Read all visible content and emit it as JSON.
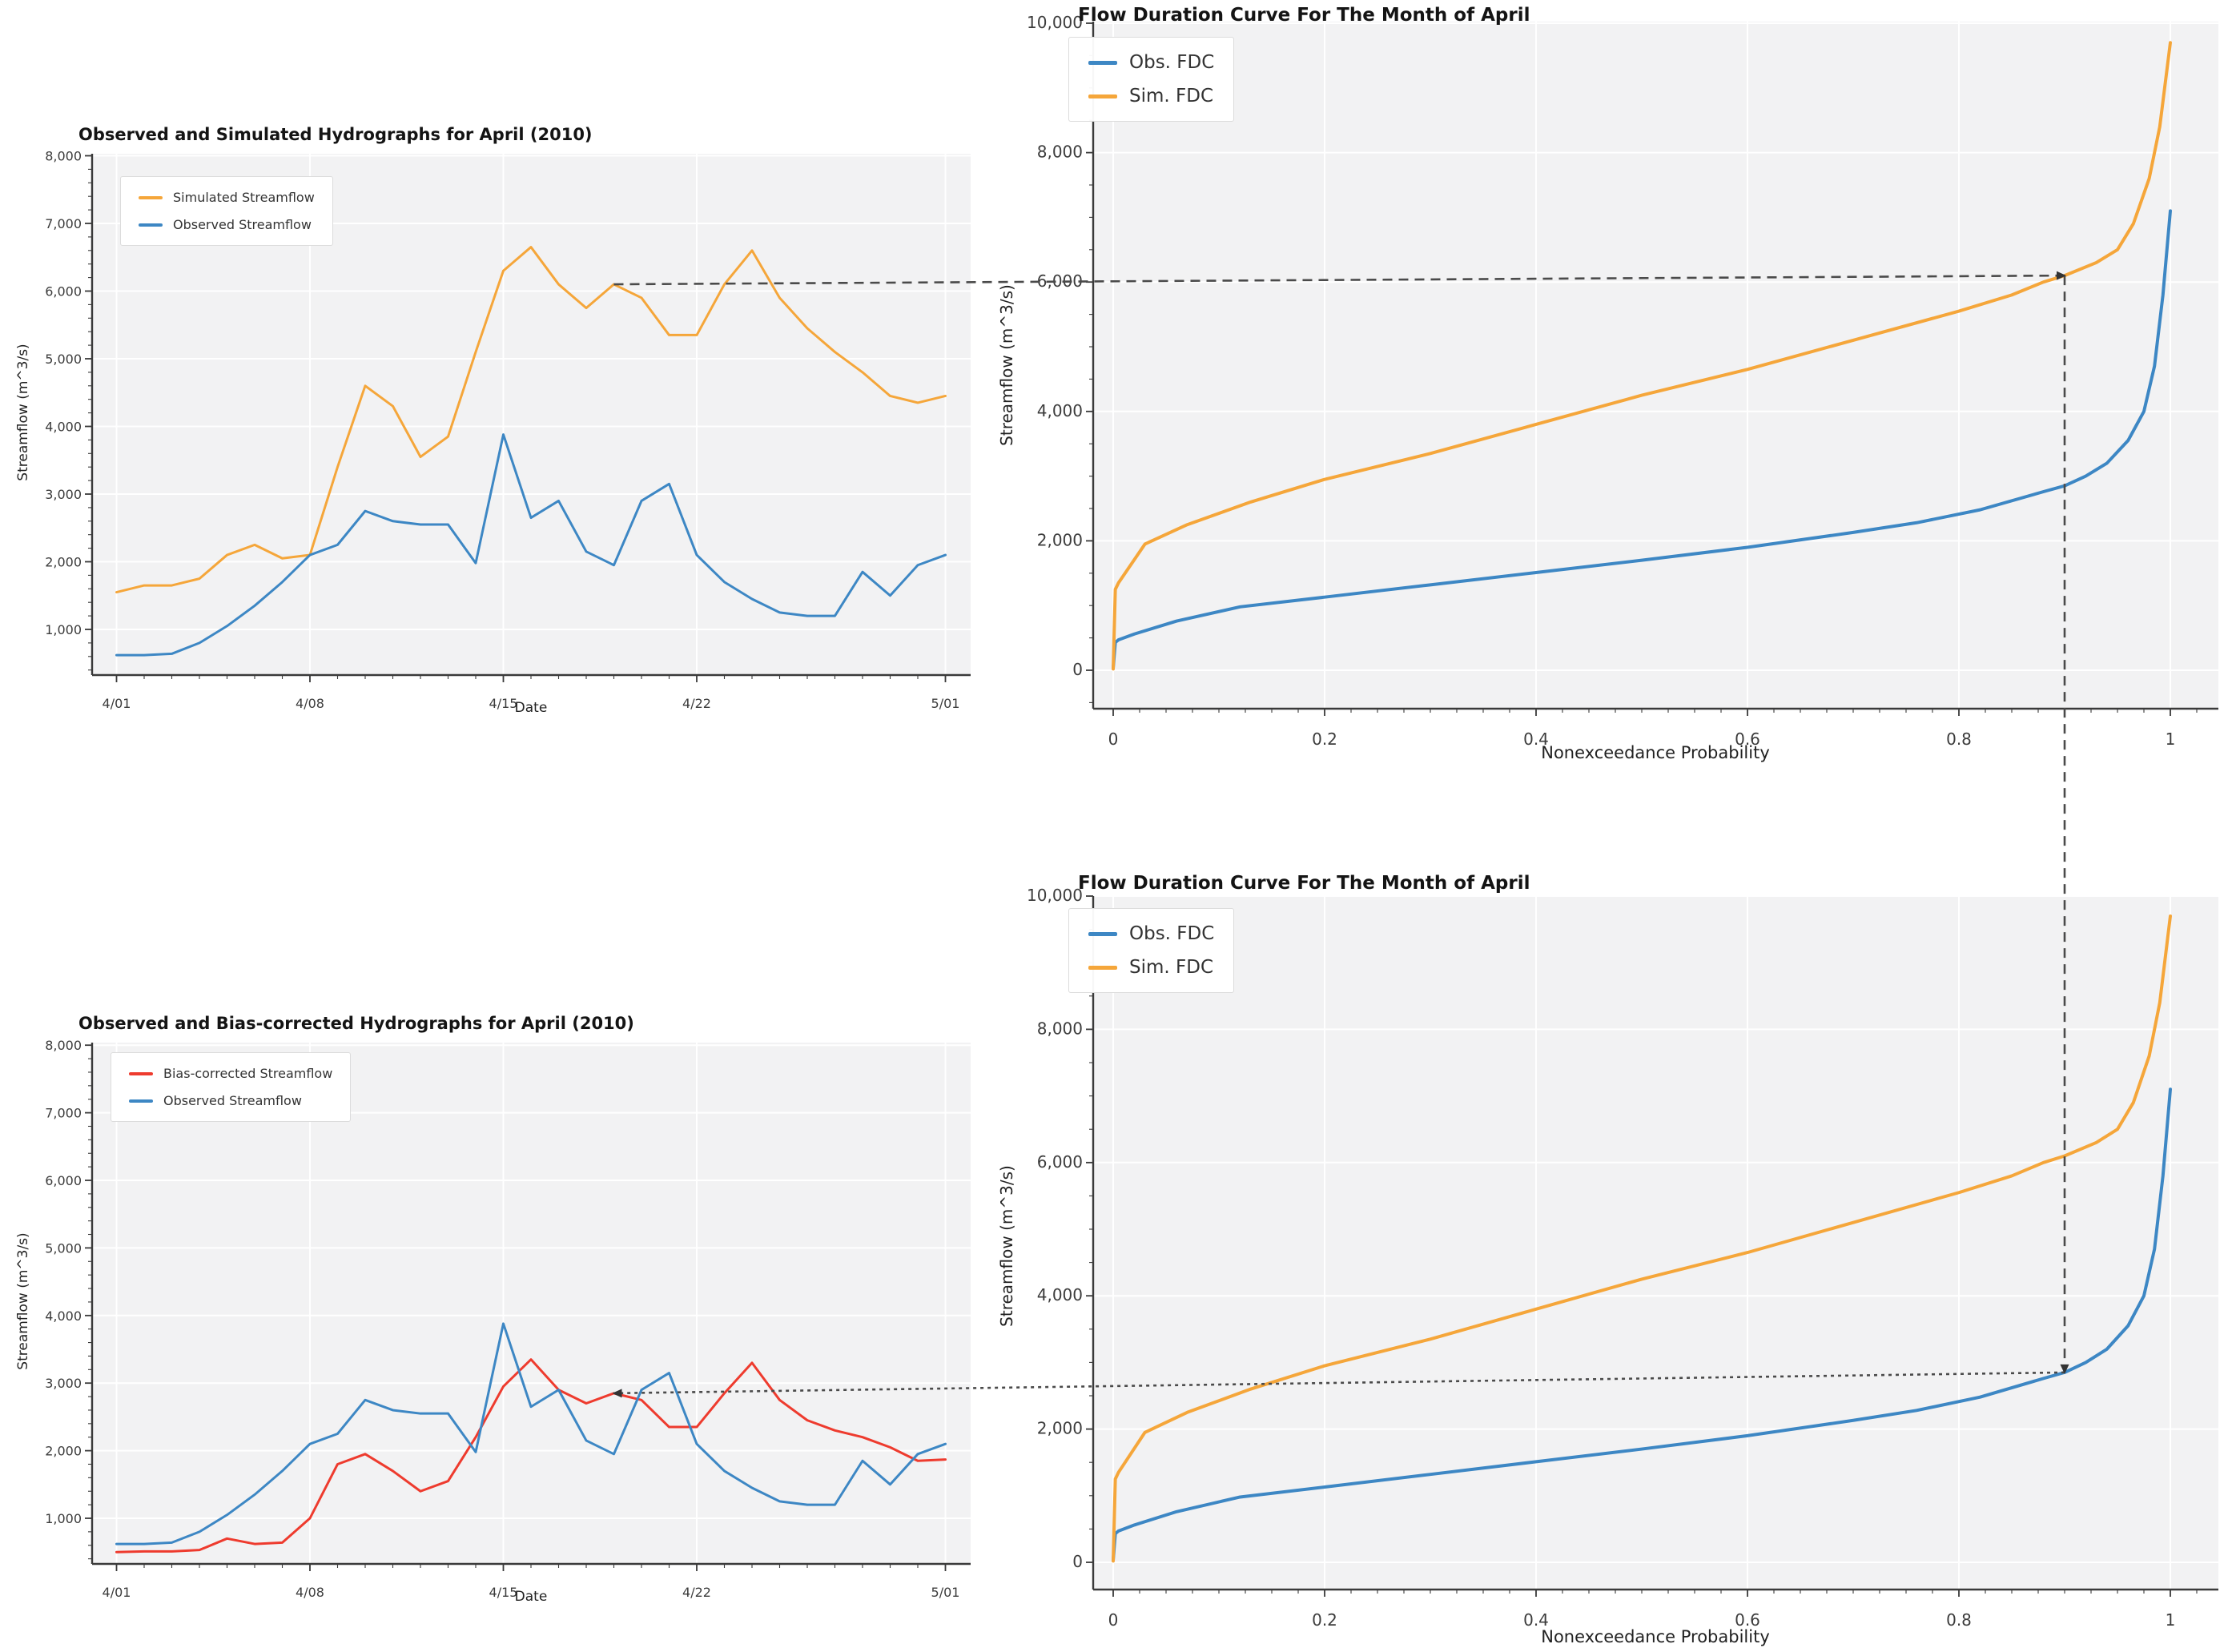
{
  "figure": {
    "plot_background": "#f2f2f3",
    "grid_color": "#ffffff",
    "spine_color": "#3a3a3a",
    "tick_label_color": "#3c3c3c",
    "annotation_color": "#4a4a4a"
  },
  "chart_data": [
    {
      "id": "hydrograph-simulated",
      "type": "line",
      "title": "Observed and Simulated Hydrographs for April (2010)",
      "xlabel": "Date",
      "ylabel": "Streamflow (m^3/s)",
      "x_tick_labels": [
        "4/01",
        "4/08",
        "4/15",
        "4/22",
        "5/01"
      ],
      "x_tick_days": [
        1,
        8,
        15,
        22,
        31
      ],
      "x_start_day": 1,
      "x_step_days": 1,
      "ylim": [
        325,
        8075
      ],
      "yticks": [
        1000,
        2000,
        3000,
        4000,
        5000,
        6000,
        7000,
        8000
      ],
      "ytick_labels": [
        "1,000",
        "2,000",
        "3,000",
        "4,000",
        "5,000",
        "6,000",
        "7,000",
        "8,000"
      ],
      "grid": true,
      "legend_position": "upper left",
      "series": [
        {
          "name": "Simulated Streamflow",
          "color": "#f5a63a",
          "values": [
            1550,
            1650,
            1650,
            1750,
            2100,
            2250,
            2050,
            2100,
            3400,
            4600,
            4300,
            3550,
            3850,
            5100,
            6300,
            6650,
            6100,
            5750,
            6100,
            5900,
            5350,
            5350,
            6100,
            6600,
            5900,
            5450,
            5100,
            4800,
            4450,
            4350,
            4450
          ]
        },
        {
          "name": "Observed Streamflow",
          "color": "#3d87c4",
          "values": [
            620,
            620,
            640,
            800,
            1050,
            1350,
            1700,
            2100,
            2250,
            2750,
            2600,
            2550,
            2550,
            1980,
            3880,
            2650,
            2900,
            2150,
            1950,
            2900,
            3150,
            2100,
            1700,
            1450,
            1250,
            1200,
            1200,
            1850,
            1500,
            1950,
            2100
          ]
        }
      ]
    },
    {
      "id": "fdc-top",
      "type": "line",
      "title": "Flow Duration Curve For The Month of April",
      "xlabel": "Nonexceedance Probability",
      "ylabel": "Streamflow (m^3/s)",
      "xticks": [
        0,
        0.2,
        0.4,
        0.6,
        0.8,
        1
      ],
      "xtick_labels": [
        "0",
        "0.2",
        "0.4",
        "0.6",
        "0.8",
        "1"
      ],
      "yticks": [
        0,
        2000,
        4000,
        6000,
        8000,
        10000
      ],
      "ytick_labels": [
        "0",
        "2,000",
        "4,000",
        "6,000",
        "8,000",
        "10,000"
      ],
      "ylim": [
        -590,
        10020
      ],
      "grid": true,
      "legend_position": "upper left",
      "series": [
        {
          "name": "Obs. FDC",
          "color": "#3d87c4",
          "x": [
            0,
            0.002,
            0.005,
            0.02,
            0.06,
            0.12,
            0.2,
            0.3,
            0.4,
            0.5,
            0.6,
            0.7,
            0.76,
            0.82,
            0.88,
            0.9,
            0.92,
            0.94,
            0.96,
            0.975,
            0.985,
            0.993,
            1
          ],
          "y": [
            30,
            430,
            470,
            560,
            760,
            980,
            1130,
            1320,
            1510,
            1700,
            1900,
            2130,
            2280,
            2480,
            2760,
            2850,
            3000,
            3200,
            3550,
            4000,
            4700,
            5800,
            7100
          ]
        },
        {
          "name": "Sim. FDC",
          "color": "#f5a63a",
          "x": [
            0,
            0.002,
            0.005,
            0.03,
            0.07,
            0.13,
            0.2,
            0.3,
            0.4,
            0.5,
            0.6,
            0.7,
            0.8,
            0.85,
            0.88,
            0.9,
            0.93,
            0.95,
            0.965,
            0.98,
            0.99,
            1
          ],
          "y": [
            20,
            1250,
            1350,
            1950,
            2250,
            2600,
            2950,
            3350,
            3800,
            4250,
            4650,
            5100,
            5550,
            5800,
            6000,
            6100,
            6300,
            6500,
            6900,
            7600,
            8400,
            9700
          ]
        }
      ]
    },
    {
      "id": "hydrograph-bias-corrected",
      "type": "line",
      "title": "Observed and Bias-corrected Hydrographs for April (2010)",
      "xlabel": "Date",
      "ylabel": "Streamflow (m^3/s)",
      "x_tick_labels": [
        "4/01",
        "4/08",
        "4/15",
        "4/22",
        "5/01"
      ],
      "x_tick_days": [
        1,
        8,
        15,
        22,
        31
      ],
      "x_start_day": 1,
      "x_step_days": 1,
      "ylim": [
        325,
        8075
      ],
      "yticks": [
        1000,
        2000,
        3000,
        4000,
        5000,
        6000,
        7000,
        8000
      ],
      "ytick_labels": [
        "1,000",
        "2,000",
        "3,000",
        "4,000",
        "5,000",
        "6,000",
        "7,000",
        "8,000"
      ],
      "grid": true,
      "legend_position": "upper left",
      "series": [
        {
          "name": "Bias-corrected Streamflow",
          "color": "#ee3b2e",
          "values": [
            500,
            510,
            510,
            530,
            700,
            620,
            640,
            1000,
            1800,
            1950,
            1700,
            1400,
            1550,
            2200,
            2950,
            3350,
            2900,
            2700,
            2850,
            2750,
            2350,
            2350,
            2850,
            3300,
            2750,
            2450,
            2300,
            2200,
            2050,
            1850,
            1870
          ]
        },
        {
          "name": "Observed Streamflow",
          "color": "#3d87c4",
          "values": [
            620,
            620,
            640,
            800,
            1050,
            1350,
            1700,
            2100,
            2250,
            2750,
            2600,
            2550,
            2550,
            1980,
            3880,
            2650,
            2900,
            2150,
            1950,
            2900,
            3150,
            2100,
            1700,
            1450,
            1250,
            1200,
            1200,
            1850,
            1500,
            1950,
            2100
          ]
        }
      ]
    },
    {
      "id": "fdc-bottom",
      "type": "line",
      "title": "Flow Duration Curve For The Month of April",
      "xlabel": "Nonexceedance Probability",
      "ylabel": "Streamflow (m^3/s)",
      "xticks": [
        0,
        0.2,
        0.4,
        0.6,
        0.8,
        1
      ],
      "xtick_labels": [
        "0",
        "0.2",
        "0.4",
        "0.6",
        "0.8",
        "1"
      ],
      "yticks": [
        0,
        2000,
        4000,
        6000,
        8000,
        10000
      ],
      "ytick_labels": [
        "0",
        "2,000",
        "4,000",
        "6,000",
        "8,000",
        "10,000"
      ],
      "ylim": [
        -410,
        10000
      ],
      "grid": true,
      "legend_position": "upper left",
      "series": [
        {
          "name": "Obs. FDC",
          "color": "#3d87c4",
          "x": [
            0,
            0.002,
            0.005,
            0.02,
            0.06,
            0.12,
            0.2,
            0.3,
            0.4,
            0.5,
            0.6,
            0.7,
            0.76,
            0.82,
            0.88,
            0.9,
            0.92,
            0.94,
            0.96,
            0.975,
            0.985,
            0.993,
            1
          ],
          "y": [
            30,
            430,
            470,
            560,
            760,
            980,
            1130,
            1320,
            1510,
            1700,
            1900,
            2130,
            2280,
            2480,
            2760,
            2850,
            3000,
            3200,
            3550,
            4000,
            4700,
            5800,
            7100
          ]
        },
        {
          "name": "Sim. FDC",
          "color": "#f5a63a",
          "x": [
            0,
            0.002,
            0.005,
            0.03,
            0.07,
            0.13,
            0.2,
            0.3,
            0.4,
            0.5,
            0.6,
            0.7,
            0.8,
            0.85,
            0.88,
            0.9,
            0.93,
            0.95,
            0.965,
            0.98,
            0.99,
            1
          ],
          "y": [
            20,
            1250,
            1350,
            1950,
            2250,
            2600,
            2950,
            3350,
            3800,
            4250,
            4650,
            5100,
            5550,
            5800,
            6000,
            6100,
            6300,
            6500,
            6900,
            7600,
            8400,
            9700
          ]
        }
      ]
    }
  ],
  "annotation": {
    "hydrograph_day": 19,
    "sim_value": 6100,
    "nonexceedance_probability": 0.9,
    "obs_value": 2850,
    "color": "#4a4a4a"
  }
}
